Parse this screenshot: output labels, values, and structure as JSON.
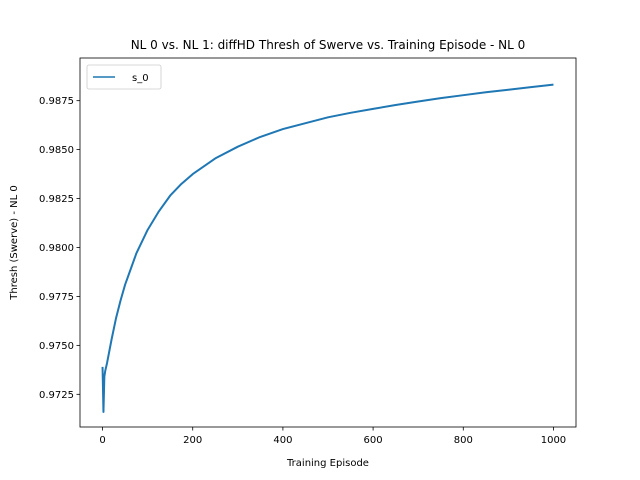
{
  "chart_data": {
    "type": "line",
    "title": "NL 0 vs. NL 1: diffHD Thresh of Swerve vs. Training Episode - NL 0",
    "xlabel": "Training Episode",
    "ylabel": "Thresh (Swerve) - NL 0",
    "xlim": [
      -50,
      1050
    ],
    "ylim": [
      0.97083,
      0.98968
    ],
    "xticks": [
      0,
      200,
      400,
      600,
      800,
      1000
    ],
    "xtick_labels": [
      "0",
      "200",
      "400",
      "600",
      "800",
      "1000"
    ],
    "yticks": [
      0.9725,
      0.975,
      0.9775,
      0.98,
      0.9825,
      0.985,
      0.9875
    ],
    "ytick_labels": [
      "0.9725",
      "0.9750",
      "0.9775",
      "0.9800",
      "0.9825",
      "0.9850",
      "0.9875"
    ],
    "grid": false,
    "legend": {
      "placement": "upper-left"
    },
    "series": [
      {
        "name": "s_0",
        "color": "#1f77b4",
        "x": [
          0,
          2,
          4,
          6,
          10,
          20,
          30,
          40,
          50,
          75,
          100,
          125,
          150,
          175,
          200,
          250,
          300,
          350,
          400,
          450,
          500,
          550,
          600,
          650,
          700,
          750,
          800,
          850,
          900,
          950,
          1000
        ],
        "y": [
          0.9739,
          0.9716,
          0.9734,
          0.9737,
          0.9741,
          0.9753,
          0.9764,
          0.9773,
          0.9781,
          0.9797,
          0.9809,
          0.98185,
          0.98265,
          0.98325,
          0.98375,
          0.98455,
          0.98515,
          0.98565,
          0.98605,
          0.98635,
          0.98665,
          0.98688,
          0.98708,
          0.98728,
          0.98746,
          0.98763,
          0.98778,
          0.98793,
          0.98806,
          0.98819,
          0.98832
        ]
      }
    ]
  }
}
